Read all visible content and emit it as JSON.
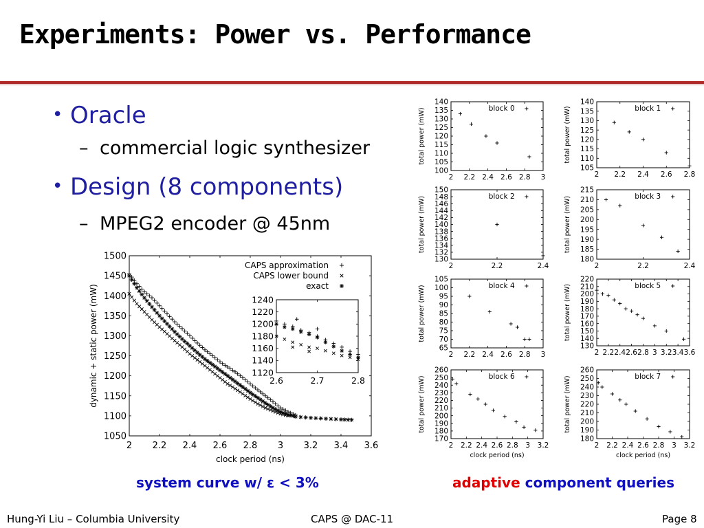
{
  "slide": {
    "title": "Experiments: Power vs. Performance",
    "bullets": [
      {
        "text": "Oracle",
        "sub": "commercial logic synthesizer"
      },
      {
        "text": "Design (8 components)",
        "sub": "MPEG2 encoder @ 45nm"
      }
    ],
    "caption_left": "system curve w/ ε < 3%",
    "caption_right_highlight": "adaptive",
    "caption_right_rest": "component queries",
    "footer_left": "Hung-Yi Liu – Columbia University",
    "footer_center": "CAPS @ DAC-11",
    "footer_right": "Page 8",
    "colors": {
      "title_rule": "#b02a2a",
      "bullet": "#1f1fa0",
      "caption_blue": "#1010c0",
      "caption_red": "#e00000"
    }
  },
  "chart_data": [
    {
      "type": "scatter",
      "id": "system",
      "xlabel": "clock period (ns)",
      "ylabel": "dynamic + static power (mW)",
      "xlim": [
        2,
        3.6
      ],
      "ylim": [
        1050,
        1500
      ],
      "xticks": [
        "2",
        "2.2",
        "2.4",
        "2.6",
        "2.8",
        "3",
        "3.2",
        "3.4",
        "3.6"
      ],
      "yticks": [
        "1050",
        "1100",
        "1150",
        "1200",
        "1250",
        "1300",
        "1350",
        "1400",
        "1450",
        "1500"
      ],
      "legend": [
        "CAPS approximation",
        "CAPS lower bound",
        "exact"
      ],
      "series": [
        {
          "name": "CAPS approximation",
          "marker": "+",
          "points": [
            [
              2.0,
              1455
            ],
            [
              2.05,
              1430
            ],
            [
              2.1,
              1410
            ],
            [
              2.15,
              1395
            ],
            [
              2.2,
              1375
            ],
            [
              2.25,
              1355
            ],
            [
              2.3,
              1335
            ],
            [
              2.35,
              1318
            ],
            [
              2.4,
              1300
            ],
            [
              2.45,
              1282
            ],
            [
              2.5,
              1265
            ],
            [
              2.55,
              1250
            ],
            [
              2.6,
              1235
            ],
            [
              2.65,
              1222
            ],
            [
              2.7,
              1210
            ],
            [
              2.75,
              1195
            ],
            [
              2.8,
              1180
            ],
            [
              2.85,
              1165
            ],
            [
              2.9,
              1150
            ],
            [
              2.95,
              1135
            ],
            [
              3.0,
              1120
            ],
            [
              3.05,
              1110
            ],
            [
              3.1,
              1102
            ]
          ]
        },
        {
          "name": "CAPS lower bound",
          "marker": "x",
          "points": [
            [
              2.0,
              1405
            ],
            [
              2.05,
              1380
            ],
            [
              2.1,
              1360
            ],
            [
              2.15,
              1340
            ],
            [
              2.2,
              1322
            ],
            [
              2.25,
              1305
            ],
            [
              2.3,
              1288
            ],
            [
              2.35,
              1272
            ],
            [
              2.4,
              1255
            ],
            [
              2.45,
              1240
            ],
            [
              2.5,
              1225
            ],
            [
              2.55,
              1210
            ],
            [
              2.6,
              1195
            ],
            [
              2.65,
              1180
            ],
            [
              2.7,
              1168
            ],
            [
              2.75,
              1155
            ],
            [
              2.8,
              1142
            ],
            [
              2.85,
              1130
            ],
            [
              2.9,
              1120
            ],
            [
              2.95,
              1112
            ],
            [
              3.0,
              1105
            ],
            [
              3.05,
              1100
            ]
          ]
        },
        {
          "name": "exact",
          "marker": "*",
          "points": [
            [
              2.0,
              1450
            ],
            [
              2.05,
              1420
            ],
            [
              2.1,
              1395
            ],
            [
              2.15,
              1372
            ],
            [
              2.2,
              1350
            ],
            [
              2.25,
              1330
            ],
            [
              2.3,
              1310
            ],
            [
              2.35,
              1292
            ],
            [
              2.4,
              1275
            ],
            [
              2.45,
              1258
            ],
            [
              2.5,
              1242
            ],
            [
              2.55,
              1228
            ],
            [
              2.6,
              1214
            ],
            [
              2.65,
              1200
            ],
            [
              2.7,
              1186
            ],
            [
              2.75,
              1172
            ],
            [
              2.8,
              1158
            ],
            [
              2.85,
              1145
            ],
            [
              2.9,
              1132
            ],
            [
              2.95,
              1120
            ],
            [
              3.0,
              1110
            ],
            [
              3.05,
              1103
            ],
            [
              3.1,
              1098
            ],
            [
              3.2,
              1095
            ],
            [
              3.3,
              1093
            ],
            [
              3.4,
              1091
            ],
            [
              3.47,
              1090
            ]
          ]
        }
      ],
      "inset": {
        "xlim": [
          2.6,
          2.8
        ],
        "ylim": [
          1120,
          1240
        ],
        "xticks": [
          "2.6",
          "2.7",
          "2.8"
        ],
        "yticks": [
          "1120",
          "1140",
          "1160",
          "1180",
          "1200",
          "1220",
          "1240"
        ],
        "series": [
          {
            "name": "CAPS approximation",
            "marker": "+",
            "points": [
              [
                2.6,
                1205
              ],
              [
                2.62,
                1200
              ],
              [
                2.64,
                1196
              ],
              [
                2.66,
                1190
              ],
              [
                2.68,
                1186
              ],
              [
                2.7,
                1180
              ],
              [
                2.72,
                1174
              ],
              [
                2.74,
                1168
              ],
              [
                2.76,
                1162
              ],
              [
                2.78,
                1155
              ],
              [
                2.8,
                1150
              ],
              [
                2.65,
                1208
              ],
              [
                2.7,
                1192
              ]
            ]
          },
          {
            "name": "CAPS lower bound",
            "marker": "x",
            "points": [
              [
                2.6,
                1180
              ],
              [
                2.62,
                1175
              ],
              [
                2.64,
                1170
              ],
              [
                2.66,
                1166
              ],
              [
                2.68,
                1162
              ],
              [
                2.7,
                1160
              ],
              [
                2.72,
                1156
              ],
              [
                2.74,
                1152
              ],
              [
                2.76,
                1148
              ],
              [
                2.78,
                1145
              ],
              [
                2.8,
                1142
              ],
              [
                2.64,
                1162
              ],
              [
                2.68,
                1155
              ]
            ]
          },
          {
            "name": "exact",
            "marker": "*",
            "points": [
              [
                2.6,
                1200
              ],
              [
                2.62,
                1195
              ],
              [
                2.64,
                1192
              ],
              [
                2.66,
                1187
              ],
              [
                2.68,
                1183
              ],
              [
                2.7,
                1178
              ],
              [
                2.72,
                1170
              ],
              [
                2.74,
                1163
              ],
              [
                2.76,
                1156
              ],
              [
                2.78,
                1150
              ],
              [
                2.8,
                1145
              ]
            ]
          }
        ]
      }
    },
    {
      "type": "scatter",
      "id": "block0",
      "label": "block 0",
      "xlabel": "",
      "ylabel": "total power (mW)",
      "xlim": [
        2,
        3
      ],
      "ylim": [
        100,
        140
      ],
      "xticks": [
        "2",
        "2.2",
        "2.4",
        "2.6",
        "2.8",
        "3"
      ],
      "yticks": [
        "100",
        "105",
        "110",
        "115",
        "120",
        "125",
        "130",
        "135",
        "140"
      ],
      "points": [
        [
          2.1,
          133
        ],
        [
          2.22,
          127
        ],
        [
          2.38,
          120
        ],
        [
          2.5,
          116
        ],
        [
          2.85,
          108
        ]
      ]
    },
    {
      "type": "scatter",
      "id": "block1",
      "label": "block 1",
      "xlabel": "",
      "ylabel": "total power (mW)",
      "xlim": [
        2,
        2.8
      ],
      "ylim": [
        105,
        140
      ],
      "xticks": [
        "2",
        "2.2",
        "2.4",
        "2.6",
        "2.8"
      ],
      "yticks": [
        "105",
        "110",
        "115",
        "120",
        "125",
        "130",
        "135",
        "140"
      ],
      "points": [
        [
          2.15,
          129
        ],
        [
          2.28,
          124
        ],
        [
          2.4,
          120
        ],
        [
          2.6,
          113
        ],
        [
          2.8,
          106
        ]
      ]
    },
    {
      "type": "scatter",
      "id": "block2",
      "label": "block 2",
      "xlabel": "",
      "ylabel": "total power (mW)",
      "xlim": [
        2,
        2.4
      ],
      "ylim": [
        130,
        150
      ],
      "xticks": [
        "2",
        "2.2",
        "2.4"
      ],
      "yticks": [
        "130",
        "132",
        "134",
        "136",
        "138",
        "140",
        "142",
        "144",
        "146",
        "148",
        "150"
      ],
      "points": [
        [
          2.2,
          140
        ],
        [
          2.4,
          131
        ]
      ]
    },
    {
      "type": "scatter",
      "id": "block3",
      "label": "block 3",
      "xlabel": "",
      "ylabel": "total power (mW)",
      "xlim": [
        2,
        2.4
      ],
      "ylim": [
        180,
        215
      ],
      "xticks": [
        "2",
        "2.2",
        "2.4"
      ],
      "yticks": [
        "180",
        "185",
        "190",
        "195",
        "200",
        "205",
        "210",
        "215"
      ],
      "points": [
        [
          2.04,
          210
        ],
        [
          2.1,
          207
        ],
        [
          2.2,
          197
        ],
        [
          2.28,
          191
        ],
        [
          2.35,
          184
        ]
      ]
    },
    {
      "type": "scatter",
      "id": "block4",
      "label": "block 4",
      "xlabel": "",
      "ylabel": "total power (mW)",
      "xlim": [
        2,
        3
      ],
      "ylim": [
        65,
        105
      ],
      "xticks": [
        "2",
        "2.2",
        "2.4",
        "2.6",
        "2.8",
        "3"
      ],
      "yticks": [
        "65",
        "70",
        "75",
        "80",
        "85",
        "90",
        "95",
        "100",
        "105"
      ],
      "points": [
        [
          2.2,
          95
        ],
        [
          2.42,
          86
        ],
        [
          2.65,
          79
        ],
        [
          2.72,
          77
        ],
        [
          2.8,
          70
        ],
        [
          2.85,
          70
        ]
      ]
    },
    {
      "type": "scatter",
      "id": "block5",
      "label": "block 5",
      "xlabel": "",
      "ylabel": "total power (mW)",
      "xlim": [
        2,
        3.6
      ],
      "ylim": [
        130,
        220
      ],
      "xticks": [
        "2",
        "2.2",
        "2.4",
        "2.6",
        "2.8",
        "3",
        "3.2",
        "3.4",
        "3.6"
      ],
      "yticks": [
        "130",
        "140",
        "150",
        "160",
        "170",
        "180",
        "190",
        "200",
        "210",
        "220"
      ],
      "points": [
        [
          2.0,
          205
        ],
        [
          2.1,
          200
        ],
        [
          2.2,
          198
        ],
        [
          2.3,
          192
        ],
        [
          2.4,
          187
        ],
        [
          2.5,
          180
        ],
        [
          2.6,
          177
        ],
        [
          2.7,
          172
        ],
        [
          2.8,
          167
        ],
        [
          3.0,
          157
        ],
        [
          3.2,
          150
        ],
        [
          3.5,
          139
        ]
      ]
    },
    {
      "type": "scatter",
      "id": "block6",
      "label": "block 6",
      "xlabel": "clock period (ns)",
      "ylabel": "total power (mW)",
      "xlim": [
        2,
        3.2
      ],
      "ylim": [
        170,
        260
      ],
      "xticks": [
        "2",
        "2.2",
        "2.4",
        "2.6",
        "2.8",
        "3",
        "3.2"
      ],
      "yticks": [
        "170",
        "180",
        "190",
        "200",
        "210",
        "220",
        "230",
        "240",
        "250",
        "260"
      ],
      "points": [
        [
          2.02,
          248
        ],
        [
          2.07,
          242
        ],
        [
          2.25,
          228
        ],
        [
          2.35,
          222
        ],
        [
          2.45,
          215
        ],
        [
          2.55,
          207
        ],
        [
          2.7,
          199
        ],
        [
          2.85,
          192
        ],
        [
          2.95,
          185
        ],
        [
          3.1,
          181
        ]
      ]
    },
    {
      "type": "scatter",
      "id": "block7",
      "label": "block 7",
      "xlabel": "clock period (ns)",
      "ylabel": "total power (mW)",
      "xlim": [
        2,
        3.2
      ],
      "ylim": [
        180,
        260
      ],
      "xticks": [
        "2",
        "2.2",
        "2.4",
        "2.6",
        "2.8",
        "3",
        "3.2"
      ],
      "yticks": [
        "180",
        "190",
        "200",
        "210",
        "220",
        "230",
        "240",
        "250",
        "260"
      ],
      "points": [
        [
          2.02,
          245
        ],
        [
          2.07,
          240
        ],
        [
          2.2,
          232
        ],
        [
          2.3,
          225
        ],
        [
          2.38,
          220
        ],
        [
          2.5,
          212
        ],
        [
          2.65,
          203
        ],
        [
          2.8,
          194
        ],
        [
          2.95,
          188
        ],
        [
          3.1,
          182
        ]
      ]
    }
  ]
}
